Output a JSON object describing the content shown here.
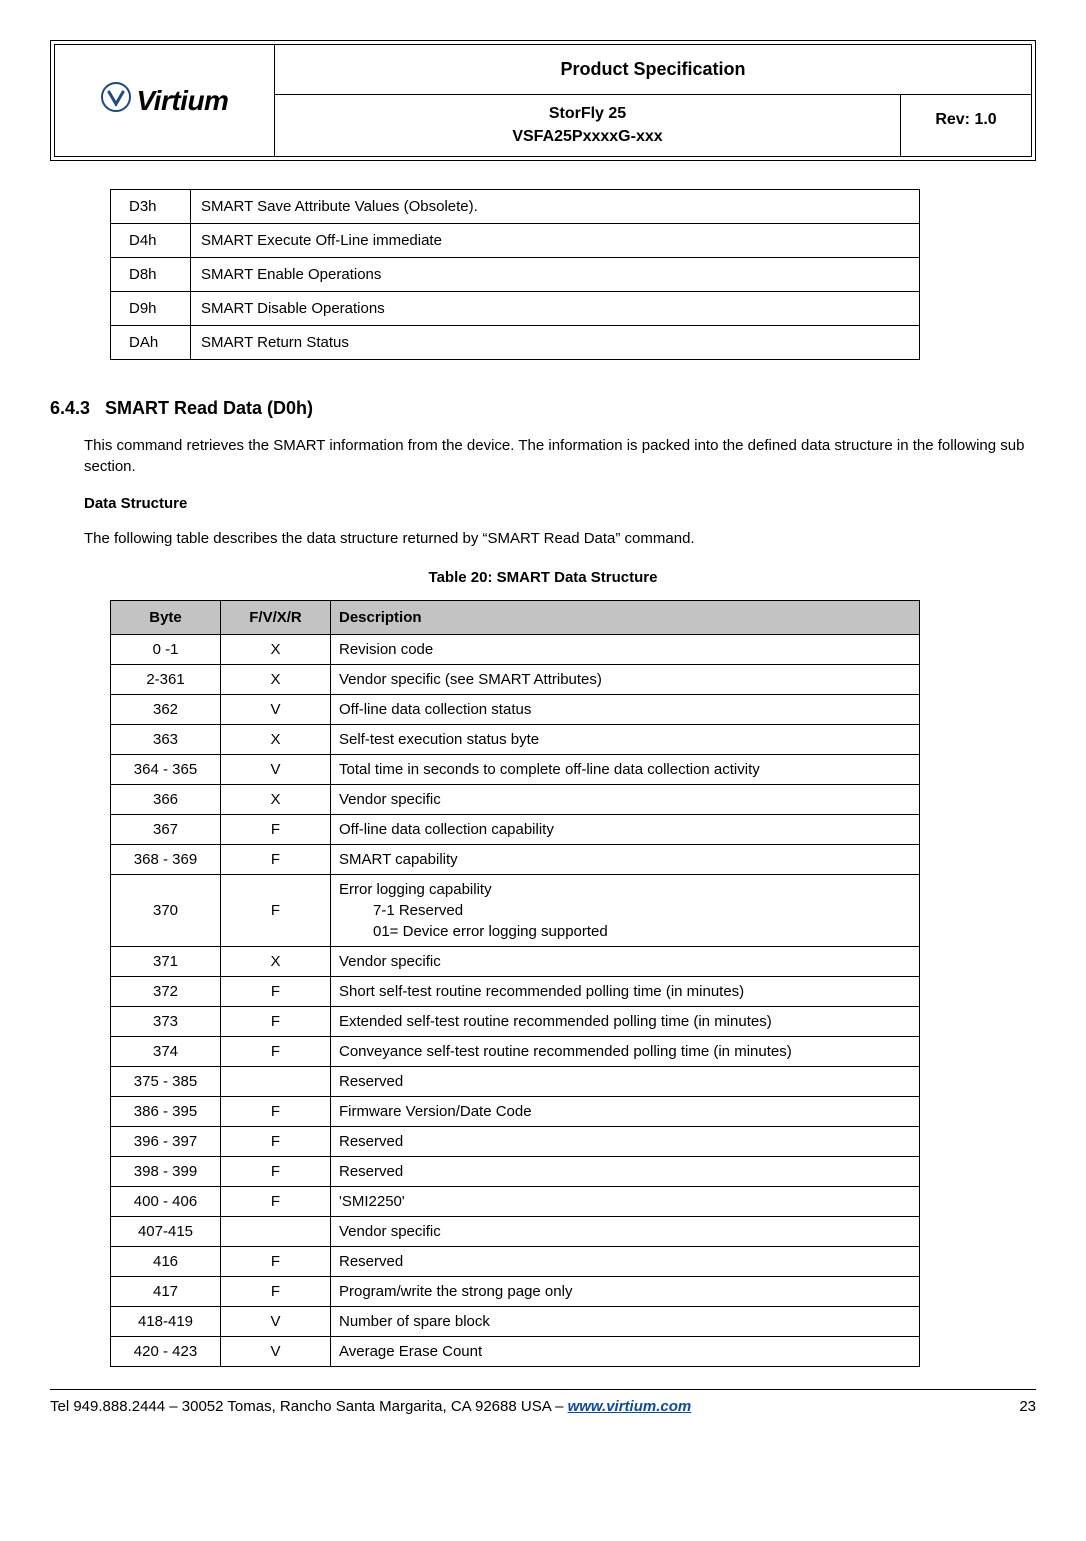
{
  "header": {
    "logo_text": "Virtium",
    "title": "Product Specification",
    "product_line1": "StorFly 25",
    "product_line2": "VSFA25PxxxxG-xxx",
    "rev": "Rev: 1.0"
  },
  "smart_commands": {
    "rows": [
      {
        "code": "D3h",
        "desc": "SMART Save Attribute Values (Obsolete)."
      },
      {
        "code": "D4h",
        "desc": "SMART Execute Off-Line immediate"
      },
      {
        "code": "D8h",
        "desc": "SMART Enable Operations"
      },
      {
        "code": "D9h",
        "desc": "SMART Disable Operations"
      },
      {
        "code": "DAh",
        "desc": "SMART Return Status"
      }
    ]
  },
  "section": {
    "number": "6.4.3",
    "title": "SMART Read Data (D0h)",
    "intro": "This command retrieves the SMART information from the device. The information is packed into the defined data structure in the following sub section.",
    "sub_heading": "Data Structure",
    "sub_intro": "The following table describes the data structure returned by “SMART Read Data” command.",
    "table_caption": "Table 20: SMART Data Structure"
  },
  "data_structure": {
    "headers": {
      "byte": "Byte",
      "fvxr": "F/V/X/R",
      "desc": "Description"
    },
    "rows": [
      {
        "byte": "0 -1",
        "fvxr": "X",
        "desc": "Revision code"
      },
      {
        "byte": "2-361",
        "fvxr": "X",
        "desc": "Vendor specific (see SMART Attributes)"
      },
      {
        "byte": "362",
        "fvxr": "V",
        "desc": "Off-line data collection status"
      },
      {
        "byte": "363",
        "fvxr": "X",
        "desc": "Self-test execution status byte"
      },
      {
        "byte": "364 - 365",
        "fvxr": "V",
        "desc": "Total time in seconds to complete off-line data collection activity"
      },
      {
        "byte": "366",
        "fvxr": "X",
        "desc": "Vendor specific"
      },
      {
        "byte": "367",
        "fvxr": "F",
        "desc": "Off-line data collection capability"
      },
      {
        "byte": "368 - 369",
        "fvxr": "F",
        "desc": "SMART capability"
      },
      {
        "byte": "370",
        "fvxr": "F",
        "desc": "Error logging capability",
        "sub1": "7-1 Reserved",
        "sub2": "01= Device error logging supported"
      },
      {
        "byte": "371",
        "fvxr": "X",
        "desc": "Vendor specific"
      },
      {
        "byte": "372",
        "fvxr": "F",
        "desc": "Short self-test routine recommended polling time (in minutes)"
      },
      {
        "byte": "373",
        "fvxr": "F",
        "desc": "Extended self-test routine recommended polling time (in minutes)"
      },
      {
        "byte": "374",
        "fvxr": "F",
        "desc": "Conveyance self-test routine recommended polling time (in minutes)"
      },
      {
        "byte": "375 - 385",
        "fvxr": "",
        "desc": "Reserved"
      },
      {
        "byte": "386 - 395",
        "fvxr": "F",
        "desc": "Firmware Version/Date Code"
      },
      {
        "byte": "396 - 397",
        "fvxr": "F",
        "desc": "Reserved"
      },
      {
        "byte": "398 - 399",
        "fvxr": "F",
        "desc": "Reserved"
      },
      {
        "byte": "400 - 406",
        "fvxr": "F",
        "desc": "'SMI2250'"
      },
      {
        "byte": "407-415",
        "fvxr": "",
        "desc": "Vendor specific"
      },
      {
        "byte": "416",
        "fvxr": "F",
        "desc": "Reserved"
      },
      {
        "byte": "417",
        "fvxr": "F",
        "desc": "Program/write the strong page only"
      },
      {
        "byte": "418-419",
        "fvxr": "V",
        "desc": "Number of spare block"
      },
      {
        "byte": "420 - 423",
        "fvxr": "V",
        "desc": "Average Erase Count"
      }
    ]
  },
  "footer": {
    "contact_prefix": "Tel 949.888.2444 – 30052 Tomas, Rancho Santa Margarita, CA 92688  USA – ",
    "url": "www.virtium.com",
    "page": "23"
  }
}
